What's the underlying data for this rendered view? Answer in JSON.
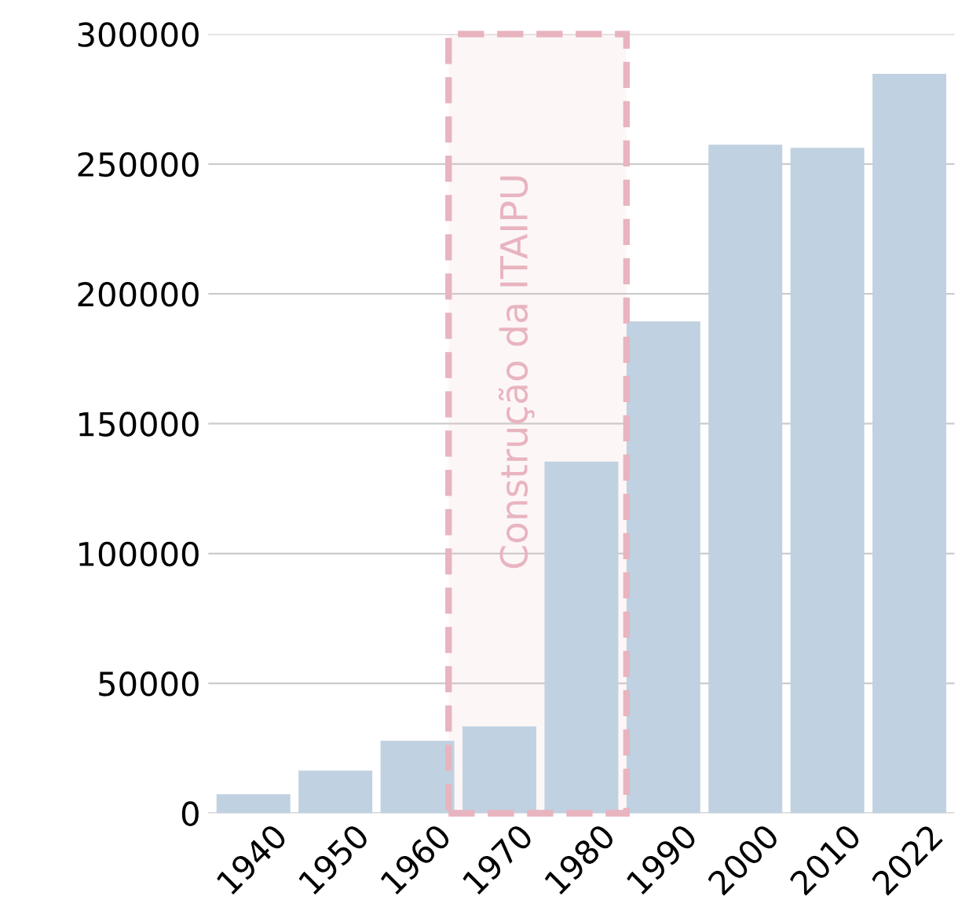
{
  "chart_data": {
    "type": "bar",
    "categories": [
      "1940",
      "1950",
      "1960",
      "1970",
      "1980",
      "1990",
      "2000",
      "2010",
      "2022"
    ],
    "values": [
      7300,
      16400,
      27900,
      33400,
      135400,
      189400,
      257400,
      256200,
      284700
    ],
    "color": "#c0d1e1",
    "ylim": [
      0,
      300000
    ],
    "yticks": [
      0,
      50000,
      100000,
      150000,
      200000,
      250000,
      300000
    ],
    "grid": "y",
    "bands": [
      {
        "axis": "x",
        "from": "1970",
        "to": "1980",
        "label": "Construção da ITAIPU",
        "color": "#e8b4bf"
      }
    ]
  }
}
